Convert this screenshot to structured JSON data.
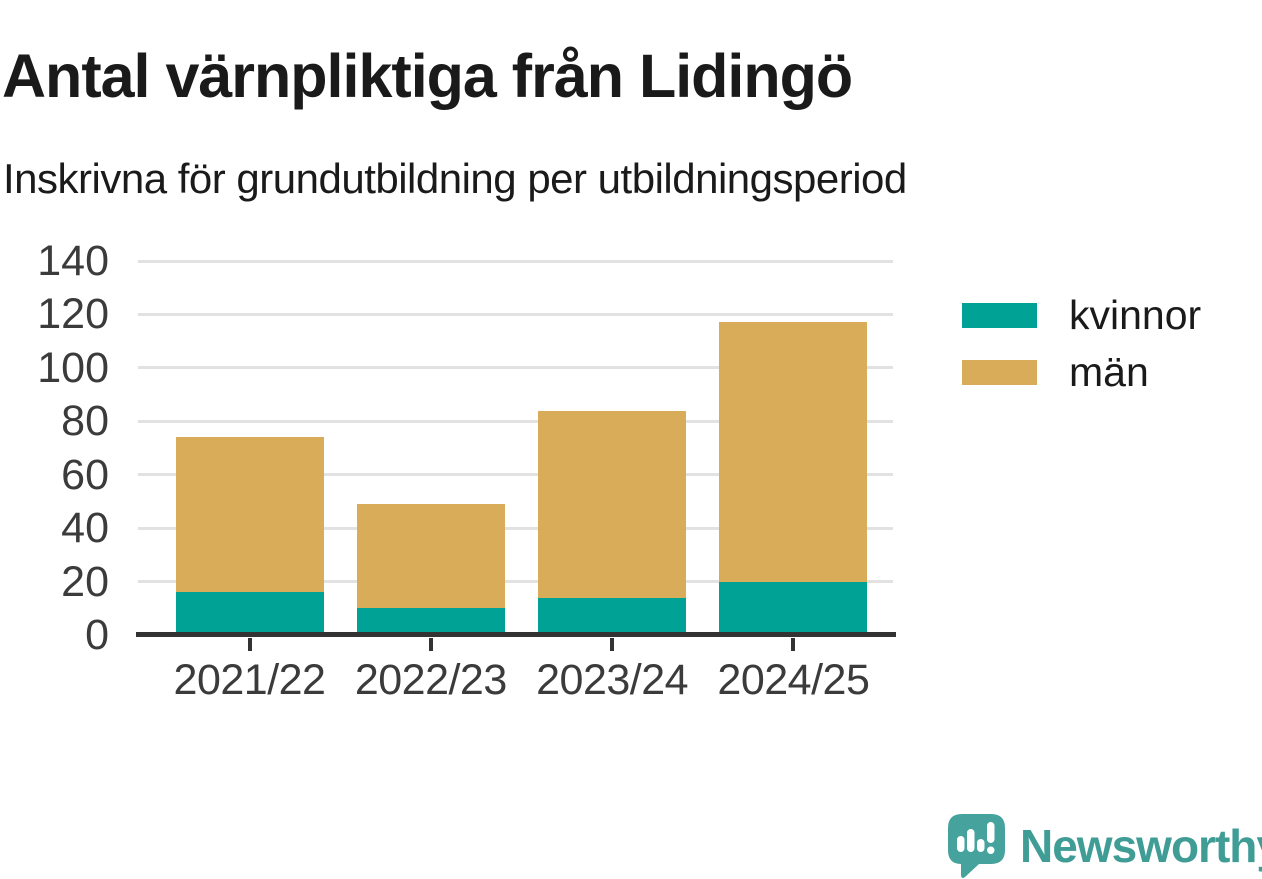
{
  "chart_data": {
    "type": "bar",
    "stacked": true,
    "title": "Antal värnpliktiga från Lidingö",
    "subtitle": "Inskrivna för grundutbildning per utbildningsperiod",
    "categories": [
      "2021/22",
      "2022/23",
      "2023/24",
      "2024/25"
    ],
    "series": [
      {
        "name": "kvinnor",
        "color": "#00a296",
        "values": [
          16,
          10,
          14,
          20
        ]
      },
      {
        "name": "män",
        "color": "#d8ac58",
        "values": [
          58,
          39,
          70,
          97
        ]
      }
    ],
    "stack_totals": [
      74,
      49,
      84,
      117
    ],
    "xlabel": "",
    "ylabel": "",
    "ylim": [
      0,
      140
    ],
    "yticks": [
      0,
      20,
      40,
      60,
      80,
      100,
      120,
      140
    ],
    "grid": true,
    "legend_position": "right"
  },
  "footer": {
    "brand": "Newsworthy"
  },
  "colors": {
    "background": "#ffffff",
    "grid": "#e2e2e2",
    "axis": "#333333",
    "tick_text": "#3b3b3b",
    "text": "#1a1a1a",
    "brand_text": "#3f9d96",
    "logo": "#46a29d"
  }
}
